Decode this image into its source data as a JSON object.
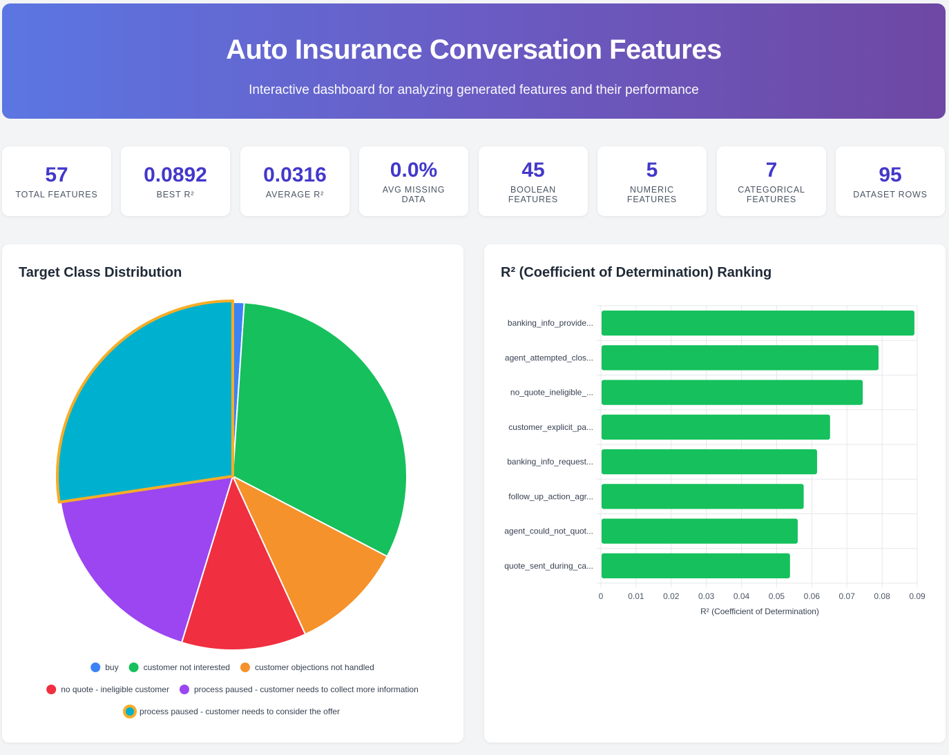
{
  "header": {
    "title": "Auto Insurance Conversation Features",
    "subtitle": "Interactive dashboard for analyzing generated features and their performance"
  },
  "stats": [
    {
      "value": "57",
      "label": "Total Features"
    },
    {
      "value": "0.0892",
      "label": "Best R²"
    },
    {
      "value": "0.0316",
      "label": "Average R²"
    },
    {
      "value": "0.0%",
      "label": "Avg Missing Data"
    },
    {
      "value": "45",
      "label": "Boolean Features"
    },
    {
      "value": "5",
      "label": "Numeric Features"
    },
    {
      "value": "7",
      "label": "Categorical Features"
    },
    {
      "value": "95",
      "label": "Dataset Rows"
    }
  ],
  "pie_card": {
    "title": "Target Class Distribution"
  },
  "bar_card": {
    "title": "R² (Coefficient of Determination) Ranking"
  },
  "chart_data": [
    {
      "type": "pie",
      "title": "Target Class Distribution",
      "legend_position": "bottom",
      "highlighted": "process paused - customer needs to consider the offer",
      "slices": [
        {
          "label": "buy",
          "value": 1,
          "color": "#3b82f6"
        },
        {
          "label": "customer not interested",
          "value": 30,
          "color": "#16c05c"
        },
        {
          "label": "customer objections not handled",
          "value": 10,
          "color": "#f5922b"
        },
        {
          "label": "no quote - ineligible customer",
          "value": 11,
          "color": "#f02f40"
        },
        {
          "label": "process paused - customer needs to collect more information",
          "value": 17,
          "color": "#9b46f0"
        },
        {
          "label": "process paused - customer needs to consider the offer",
          "value": 26,
          "color": "#00b1cf"
        }
      ],
      "highlight_color": "#f7ad26"
    },
    {
      "type": "bar",
      "orientation": "horizontal",
      "title": "R² (Coefficient of Determination) Ranking",
      "xlabel": "R² (Coefficient of Determination)",
      "xlim": [
        0,
        0.09
      ],
      "xticks": [
        "0",
        "0.01",
        "0.02",
        "0.03",
        "0.04",
        "0.05",
        "0.06",
        "0.07",
        "0.08",
        "0.09"
      ],
      "grid": true,
      "color": "#16c05c",
      "categories": [
        "banking_info_provide...",
        "agent_attempted_clos...",
        "no_quote_ineligible_...",
        "customer_explicit_pa...",
        "banking_info_request...",
        "follow_up_action_agr...",
        "agent_could_not_quot...",
        "quote_sent_during_ca..."
      ],
      "values": [
        0.0892,
        0.079,
        0.0745,
        0.0652,
        0.0615,
        0.0577,
        0.056,
        0.0538
      ]
    }
  ]
}
